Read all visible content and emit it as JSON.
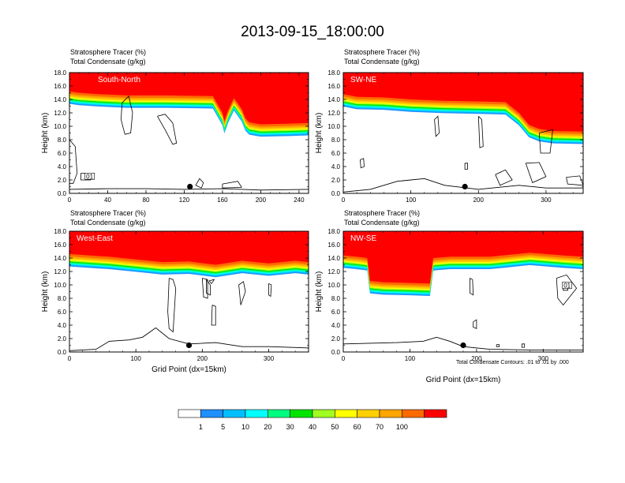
{
  "title": "2013-09-15_18:00:00",
  "panel_header_line1": "Stratosphere Tracer   (%)",
  "panel_header_line2": "Total Condensate   (g/kg)",
  "ylabel": "Height (km)",
  "xlabel": "Grid Point (dx=15km)",
  "contour_note": "Total Condensate Contours: .01 to .01 by .000",
  "colorbar": {
    "colors": [
      "#ffffff",
      "#1e90ff",
      "#00bfff",
      "#00ffff",
      "#00ff7f",
      "#00e400",
      "#a0ff20",
      "#ffff00",
      "#ffd000",
      "#ffa500",
      "#ff6a00",
      "#ff0000"
    ],
    "labels": [
      "1",
      "5",
      "10",
      "20",
      "30",
      "40",
      "50",
      "60",
      "70",
      "100"
    ]
  },
  "chart_data": [
    {
      "type": "heatmap",
      "title": "South-North",
      "xlabel": "",
      "ylabel": "Height (km)",
      "xlim": [
        0,
        250
      ],
      "ylim": [
        0,
        18
      ],
      "xticks": [
        "0",
        "40",
        "80",
        "120",
        "160",
        "200",
        "240"
      ],
      "yticks": [
        "0.0",
        "2.0",
        "4.0",
        "6.0",
        "8.0",
        "10.0",
        "12.0",
        "14.0",
        "16.0",
        "18.0"
      ],
      "tracer_base": {
        "x": [
          0,
          10,
          30,
          60,
          100,
          150,
          160,
          162,
          166,
          172,
          180,
          184,
          188,
          200,
          230,
          250
        ],
        "y": [
          15.2,
          15.0,
          14.8,
          14.6,
          14.6,
          14.5,
          12.0,
          10.8,
          12.4,
          14.2,
          12.6,
          11.2,
          10.6,
          10.3,
          10.4,
          10.5
        ]
      },
      "contour_label": "01"
    },
    {
      "type": "heatmap",
      "title": "SW-NE",
      "xlabel": "",
      "ylabel": "Height (km)",
      "xlim": [
        0,
        355
      ],
      "ylim": [
        0,
        18
      ],
      "xticks": [
        "0",
        "100",
        "200",
        "300"
      ],
      "yticks": [
        "0.0",
        "2.0",
        "4.0",
        "6.0",
        "8.0",
        "10.0",
        "12.0",
        "14.0",
        "16.0",
        "18.0"
      ],
      "tracer_base": {
        "x": [
          0,
          20,
          60,
          100,
          150,
          200,
          240,
          260,
          275,
          290,
          310,
          355
        ],
        "y": [
          14.8,
          14.4,
          14.3,
          14.0,
          13.8,
          13.7,
          13.6,
          12.0,
          10.2,
          9.6,
          9.3,
          9.2
        ]
      }
    },
    {
      "type": "heatmap",
      "title": "West-East",
      "xlabel": "Grid Point (dx=15km)",
      "ylabel": "Height (km)",
      "xlim": [
        0,
        360
      ],
      "ylim": [
        0,
        18
      ],
      "xticks": [
        "0",
        "100",
        "200",
        "300"
      ],
      "yticks": [
        "0.0",
        "2.0",
        "4.0",
        "6.0",
        "8.0",
        "10.0",
        "12.0",
        "14.0",
        "16.0",
        "18.0"
      ],
      "tracer_base": {
        "x": [
          0,
          30,
          60,
          100,
          140,
          180,
          220,
          260,
          300,
          340,
          360
        ],
        "y": [
          14.6,
          14.4,
          14.2,
          13.8,
          13.4,
          13.5,
          13.0,
          13.6,
          13.2,
          13.6,
          13.4
        ]
      }
    },
    {
      "type": "heatmap",
      "title": "NW-SE",
      "xlabel": "Grid Point (dx=15km)",
      "ylabel": "Height (km)",
      "xlim": [
        0,
        360
      ],
      "ylim": [
        0,
        18
      ],
      "xticks": [
        "0",
        "100",
        "200",
        "300"
      ],
      "yticks": [
        "0.0",
        "2.0",
        "4.0",
        "6.0",
        "8.0",
        "10.0",
        "12.0",
        "14.0",
        "16.0",
        "18.0"
      ],
      "tracer_base": {
        "x": [
          0,
          20,
          36,
          40,
          60,
          100,
          130,
          135,
          160,
          220,
          280,
          330,
          360
        ],
        "y": [
          14.4,
          14.2,
          14.0,
          10.6,
          10.4,
          10.3,
          10.2,
          14.0,
          14.2,
          14.2,
          14.8,
          14.4,
          14.2
        ]
      },
      "contour_label": "01"
    }
  ]
}
